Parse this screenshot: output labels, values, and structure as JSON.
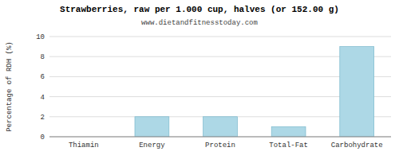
{
  "chart_data": {
    "type": "bar",
    "title": "Strawberries, raw per 1.000 cup, halves (or 152.00 g)",
    "subtitle": "www.dietandfitnesstoday.com",
    "ylabel": "Percentage of RDH (%)",
    "categories": [
      "Thiamin",
      "Energy",
      "Protein",
      "Total-Fat",
      "Carbohydrate"
    ],
    "values": [
      0.0,
      2.0,
      2.0,
      1.0,
      9.0
    ],
    "color": "#add8e6",
    "ylim": [
      0,
      10
    ],
    "yticks": [
      0,
      2,
      4,
      6,
      8,
      10
    ],
    "grid": true
  }
}
